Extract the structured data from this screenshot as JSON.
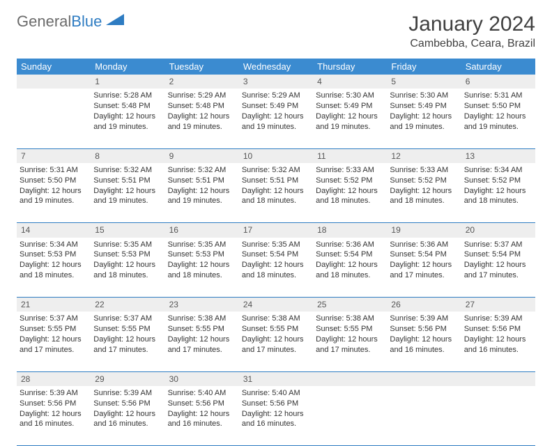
{
  "logo": {
    "part1": "General",
    "part2": "Blue"
  },
  "title": "January 2024",
  "location": "Cambebba, Ceara, Brazil",
  "colors": {
    "header_bg": "#3b8bd0",
    "header_text": "#ffffff",
    "daynum_bg": "#eeeeee",
    "row_border": "#2e7cc2",
    "body_text": "#333333",
    "logo_gray": "#6b6b6b",
    "logo_blue": "#2e7cc2"
  },
  "weekdays": [
    "Sunday",
    "Monday",
    "Tuesday",
    "Wednesday",
    "Thursday",
    "Friday",
    "Saturday"
  ],
  "weeks": [
    {
      "nums": [
        "",
        "1",
        "2",
        "3",
        "4",
        "5",
        "6"
      ],
      "cells": [
        null,
        {
          "sr": "Sunrise: 5:28 AM",
          "ss": "Sunset: 5:48 PM",
          "d1": "Daylight: 12 hours",
          "d2": "and 19 minutes."
        },
        {
          "sr": "Sunrise: 5:29 AM",
          "ss": "Sunset: 5:48 PM",
          "d1": "Daylight: 12 hours",
          "d2": "and 19 minutes."
        },
        {
          "sr": "Sunrise: 5:29 AM",
          "ss": "Sunset: 5:49 PM",
          "d1": "Daylight: 12 hours",
          "d2": "and 19 minutes."
        },
        {
          "sr": "Sunrise: 5:30 AM",
          "ss": "Sunset: 5:49 PM",
          "d1": "Daylight: 12 hours",
          "d2": "and 19 minutes."
        },
        {
          "sr": "Sunrise: 5:30 AM",
          "ss": "Sunset: 5:49 PM",
          "d1": "Daylight: 12 hours",
          "d2": "and 19 minutes."
        },
        {
          "sr": "Sunrise: 5:31 AM",
          "ss": "Sunset: 5:50 PM",
          "d1": "Daylight: 12 hours",
          "d2": "and 19 minutes."
        }
      ]
    },
    {
      "nums": [
        "7",
        "8",
        "9",
        "10",
        "11",
        "12",
        "13"
      ],
      "cells": [
        {
          "sr": "Sunrise: 5:31 AM",
          "ss": "Sunset: 5:50 PM",
          "d1": "Daylight: 12 hours",
          "d2": "and 19 minutes."
        },
        {
          "sr": "Sunrise: 5:32 AM",
          "ss": "Sunset: 5:51 PM",
          "d1": "Daylight: 12 hours",
          "d2": "and 19 minutes."
        },
        {
          "sr": "Sunrise: 5:32 AM",
          "ss": "Sunset: 5:51 PM",
          "d1": "Daylight: 12 hours",
          "d2": "and 19 minutes."
        },
        {
          "sr": "Sunrise: 5:32 AM",
          "ss": "Sunset: 5:51 PM",
          "d1": "Daylight: 12 hours",
          "d2": "and 18 minutes."
        },
        {
          "sr": "Sunrise: 5:33 AM",
          "ss": "Sunset: 5:52 PM",
          "d1": "Daylight: 12 hours",
          "d2": "and 18 minutes."
        },
        {
          "sr": "Sunrise: 5:33 AM",
          "ss": "Sunset: 5:52 PM",
          "d1": "Daylight: 12 hours",
          "d2": "and 18 minutes."
        },
        {
          "sr": "Sunrise: 5:34 AM",
          "ss": "Sunset: 5:52 PM",
          "d1": "Daylight: 12 hours",
          "d2": "and 18 minutes."
        }
      ]
    },
    {
      "nums": [
        "14",
        "15",
        "16",
        "17",
        "18",
        "19",
        "20"
      ],
      "cells": [
        {
          "sr": "Sunrise: 5:34 AM",
          "ss": "Sunset: 5:53 PM",
          "d1": "Daylight: 12 hours",
          "d2": "and 18 minutes."
        },
        {
          "sr": "Sunrise: 5:35 AM",
          "ss": "Sunset: 5:53 PM",
          "d1": "Daylight: 12 hours",
          "d2": "and 18 minutes."
        },
        {
          "sr": "Sunrise: 5:35 AM",
          "ss": "Sunset: 5:53 PM",
          "d1": "Daylight: 12 hours",
          "d2": "and 18 minutes."
        },
        {
          "sr": "Sunrise: 5:35 AM",
          "ss": "Sunset: 5:54 PM",
          "d1": "Daylight: 12 hours",
          "d2": "and 18 minutes."
        },
        {
          "sr": "Sunrise: 5:36 AM",
          "ss": "Sunset: 5:54 PM",
          "d1": "Daylight: 12 hours",
          "d2": "and 18 minutes."
        },
        {
          "sr": "Sunrise: 5:36 AM",
          "ss": "Sunset: 5:54 PM",
          "d1": "Daylight: 12 hours",
          "d2": "and 17 minutes."
        },
        {
          "sr": "Sunrise: 5:37 AM",
          "ss": "Sunset: 5:54 PM",
          "d1": "Daylight: 12 hours",
          "d2": "and 17 minutes."
        }
      ]
    },
    {
      "nums": [
        "21",
        "22",
        "23",
        "24",
        "25",
        "26",
        "27"
      ],
      "cells": [
        {
          "sr": "Sunrise: 5:37 AM",
          "ss": "Sunset: 5:55 PM",
          "d1": "Daylight: 12 hours",
          "d2": "and 17 minutes."
        },
        {
          "sr": "Sunrise: 5:37 AM",
          "ss": "Sunset: 5:55 PM",
          "d1": "Daylight: 12 hours",
          "d2": "and 17 minutes."
        },
        {
          "sr": "Sunrise: 5:38 AM",
          "ss": "Sunset: 5:55 PM",
          "d1": "Daylight: 12 hours",
          "d2": "and 17 minutes."
        },
        {
          "sr": "Sunrise: 5:38 AM",
          "ss": "Sunset: 5:55 PM",
          "d1": "Daylight: 12 hours",
          "d2": "and 17 minutes."
        },
        {
          "sr": "Sunrise: 5:38 AM",
          "ss": "Sunset: 5:55 PM",
          "d1": "Daylight: 12 hours",
          "d2": "and 17 minutes."
        },
        {
          "sr": "Sunrise: 5:39 AM",
          "ss": "Sunset: 5:56 PM",
          "d1": "Daylight: 12 hours",
          "d2": "and 16 minutes."
        },
        {
          "sr": "Sunrise: 5:39 AM",
          "ss": "Sunset: 5:56 PM",
          "d1": "Daylight: 12 hours",
          "d2": "and 16 minutes."
        }
      ]
    },
    {
      "nums": [
        "28",
        "29",
        "30",
        "31",
        "",
        "",
        ""
      ],
      "cells": [
        {
          "sr": "Sunrise: 5:39 AM",
          "ss": "Sunset: 5:56 PM",
          "d1": "Daylight: 12 hours",
          "d2": "and 16 minutes."
        },
        {
          "sr": "Sunrise: 5:39 AM",
          "ss": "Sunset: 5:56 PM",
          "d1": "Daylight: 12 hours",
          "d2": "and 16 minutes."
        },
        {
          "sr": "Sunrise: 5:40 AM",
          "ss": "Sunset: 5:56 PM",
          "d1": "Daylight: 12 hours",
          "d2": "and 16 minutes."
        },
        {
          "sr": "Sunrise: 5:40 AM",
          "ss": "Sunset: 5:56 PM",
          "d1": "Daylight: 12 hours",
          "d2": "and 16 minutes."
        },
        null,
        null,
        null
      ]
    }
  ]
}
